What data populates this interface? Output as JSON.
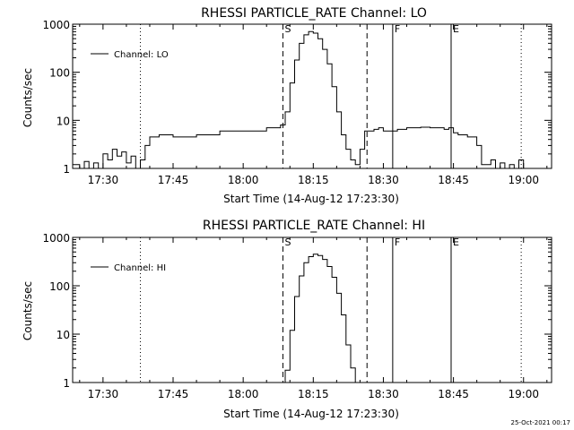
{
  "footer": {
    "timestamp": "25-Oct-2021 00:17"
  },
  "style": {
    "foreground": "#000000",
    "background": "#ffffff"
  },
  "chart_data": [
    {
      "type": "line",
      "title": "RHESSI PARTICLE_RATE Channel: LO",
      "xlabel": "Start Time (14-Aug-12 17:23:30)",
      "ylabel": "Counts/sec",
      "y_scale": "log",
      "ylim": [
        1,
        1000
      ],
      "xlim": [
        "17:23:30",
        "19:06:00"
      ],
      "x_ticks": [
        "17:30",
        "17:45",
        "18:00",
        "18:15",
        "18:30",
        "18:45",
        "19:00"
      ],
      "y_ticks": [
        "1",
        "10",
        "100",
        "1000"
      ],
      "legend": {
        "position": "upper-left",
        "entries": [
          "Channel: LO"
        ]
      },
      "series": [
        {
          "name": "Channel: LO",
          "x": [
            "17:23:30",
            "17:25",
            "17:26",
            "17:27",
            "17:28",
            "17:29",
            "17:30",
            "17:31",
            "17:32",
            "17:33",
            "17:34",
            "17:35",
            "17:36",
            "17:37",
            "17:38",
            "17:39",
            "17:40",
            "17:42",
            "17:45",
            "17:50",
            "17:55",
            "18:00",
            "18:05",
            "18:08",
            "18:09",
            "18:10",
            "18:11",
            "18:12",
            "18:13",
            "18:14",
            "18:15",
            "18:16",
            "18:17",
            "18:18",
            "18:19",
            "18:20",
            "18:21",
            "18:22",
            "18:23",
            "18:24",
            "18:25",
            "18:26",
            "18:27",
            "18:28",
            "18:29",
            "18:30",
            "18:33",
            "18:35",
            "18:38",
            "18:40",
            "18:43",
            "18:44",
            "18:45",
            "18:46",
            "18:48",
            "18:50",
            "18:51",
            "18:52",
            "18:53",
            "18:54",
            "18:55",
            "18:56",
            "18:57",
            "18:58",
            "18:59",
            "19:00"
          ],
          "y": [
            1.2,
            1,
            1.4,
            1,
            1.3,
            1,
            2,
            1.5,
            2.5,
            1.8,
            2.2,
            1.3,
            1.8,
            1,
            1.5,
            3,
            4.5,
            5,
            4.5,
            5,
            6,
            6,
            7,
            8,
            15,
            60,
            180,
            400,
            600,
            700,
            650,
            500,
            300,
            150,
            50,
            15,
            5,
            2.5,
            1.5,
            1.2,
            2.5,
            6,
            6,
            6.5,
            7,
            6,
            6.5,
            7,
            7.2,
            7,
            6.5,
            7,
            5.5,
            5,
            4.5,
            3,
            1.2,
            1.2,
            1.5,
            1,
            1.3,
            1,
            1.2,
            1,
            1.5,
            1
          ]
        }
      ],
      "markers": [
        {
          "label": "",
          "x": "17:38:00",
          "style": "dotted"
        },
        {
          "label": "S",
          "x": "18:08:30",
          "style": "dashed"
        },
        {
          "label": "",
          "x": "18:26:30",
          "style": "dashed"
        },
        {
          "label": "F",
          "x": "18:32:00",
          "style": "solid"
        },
        {
          "label": "E",
          "x": "18:44:30",
          "style": "solid"
        },
        {
          "label": "",
          "x": "18:59:30",
          "style": "dotted"
        }
      ]
    },
    {
      "type": "line",
      "title": "RHESSI PARTICLE_RATE Channel: HI",
      "xlabel": "Start Time (14-Aug-12 17:23:30)",
      "ylabel": "Counts/sec",
      "y_scale": "log",
      "ylim": [
        1,
        1000
      ],
      "xlim": [
        "17:23:30",
        "19:06:00"
      ],
      "x_ticks": [
        "17:30",
        "17:45",
        "18:00",
        "18:15",
        "18:30",
        "18:45",
        "19:00"
      ],
      "y_ticks": [
        "1",
        "10",
        "100",
        "1000"
      ],
      "legend": {
        "position": "upper-left",
        "entries": [
          "Channel: HI"
        ]
      },
      "series": [
        {
          "name": "Channel: HI",
          "x": [
            "18:08:30",
            "18:09",
            "18:10",
            "18:11",
            "18:12",
            "18:13",
            "18:14",
            "18:15",
            "18:16",
            "18:17",
            "18:18",
            "18:19",
            "18:20",
            "18:21",
            "18:22",
            "18:23",
            "18:24"
          ],
          "y": [
            1,
            1.8,
            12,
            60,
            160,
            300,
            400,
            450,
            420,
            350,
            250,
            150,
            70,
            25,
            6,
            2,
            1
          ]
        }
      ],
      "markers": [
        {
          "label": "",
          "x": "17:38:00",
          "style": "dotted"
        },
        {
          "label": "S",
          "x": "18:08:30",
          "style": "dashed"
        },
        {
          "label": "",
          "x": "18:26:30",
          "style": "dashed"
        },
        {
          "label": "F",
          "x": "18:32:00",
          "style": "solid"
        },
        {
          "label": "E",
          "x": "18:44:30",
          "style": "solid"
        },
        {
          "label": "",
          "x": "18:59:30",
          "style": "dotted"
        }
      ]
    }
  ]
}
